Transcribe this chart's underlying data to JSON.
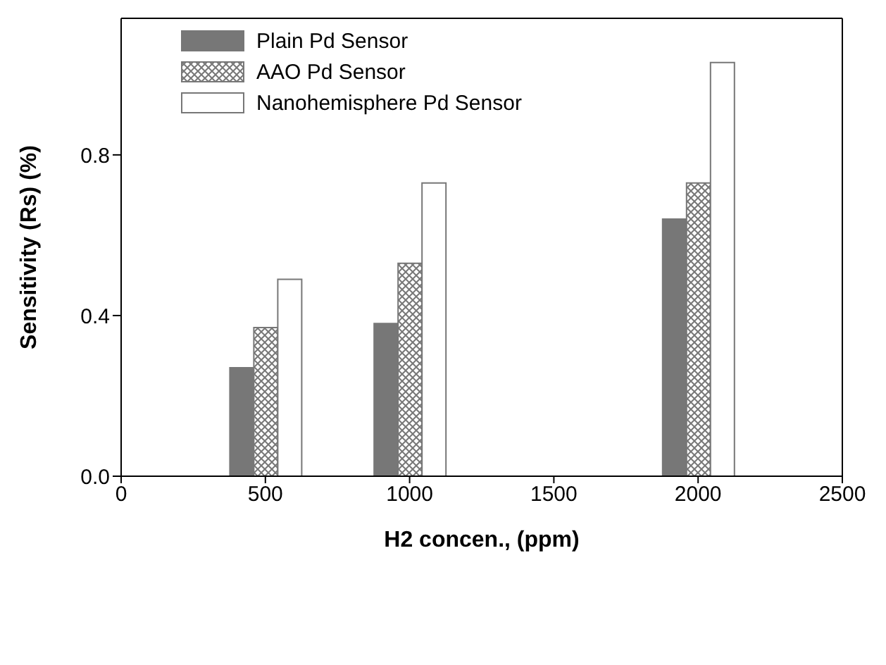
{
  "chart_data": {
    "type": "bar",
    "xlabel": "H2 concen., (ppm)",
    "ylabel": "Sensitivity (Rs) (%)",
    "x": [
      500,
      1000,
      2000
    ],
    "series": [
      {
        "name": "Plain Pd Sensor",
        "color": "#777777",
        "values": [
          0.27,
          0.38,
          0.64
        ]
      },
      {
        "name": "AAO Pd Sensor",
        "color": "#777777",
        "values": [
          0.37,
          0.53,
          0.73
        ]
      },
      {
        "name": "Nanohemisphere Pd Sensor",
        "color": "#ffffff",
        "values": [
          0.49,
          0.73,
          1.03
        ]
      }
    ],
    "xlim": [
      0,
      2500
    ],
    "xticks": [
      0,
      500,
      1000,
      1500,
      2000,
      2500
    ],
    "ylim": [
      0,
      1.14
    ],
    "yticks": [
      {
        "value": 0,
        "label": "0.0"
      },
      0.4,
      0.8
    ],
    "legend": "top left",
    "grid": false
  }
}
